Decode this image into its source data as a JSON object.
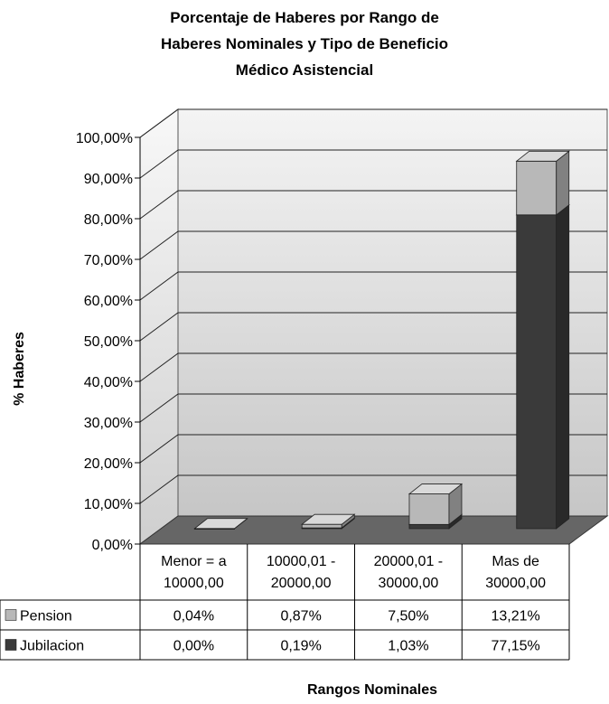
{
  "chart_data": {
    "type": "bar",
    "title_lines": [
      "Porcentaje de Haberes por Rango de",
      "Haberes Nominales y Tipo de Beneficio",
      "Médico Asistencial"
    ],
    "ylabel": "% Haberes",
    "xlabel": "Rangos Nominales",
    "ylim": [
      0,
      100
    ],
    "y_ticks": [
      "0,00%",
      "10,00%",
      "20,00%",
      "30,00%",
      "40,00%",
      "50,00%",
      "60,00%",
      "70,00%",
      "80,00%",
      "90,00%",
      "100,00%"
    ],
    "categories": [
      [
        "Menor = a",
        "10000,00"
      ],
      [
        "10000,01 -",
        "20000,00"
      ],
      [
        "20000,01 -",
        "30000,00"
      ],
      [
        "Mas de",
        "30000,00"
      ]
    ],
    "stacked": true,
    "series": [
      {
        "name": "Jubilacion",
        "values": [
          0.0,
          0.19,
          1.03,
          77.15
        ],
        "labels": [
          "0,00%",
          "0,19%",
          "1,03%",
          "77,15%"
        ],
        "color": "#3a3a3a"
      },
      {
        "name": "Pension",
        "values": [
          0.04,
          0.87,
          7.5,
          13.21
        ],
        "labels": [
          "0,04%",
          "0,87%",
          "7,50%",
          "13,21%"
        ],
        "color": "#b8b8b8"
      }
    ],
    "data_table": true,
    "grid": true,
    "style": "3d"
  }
}
